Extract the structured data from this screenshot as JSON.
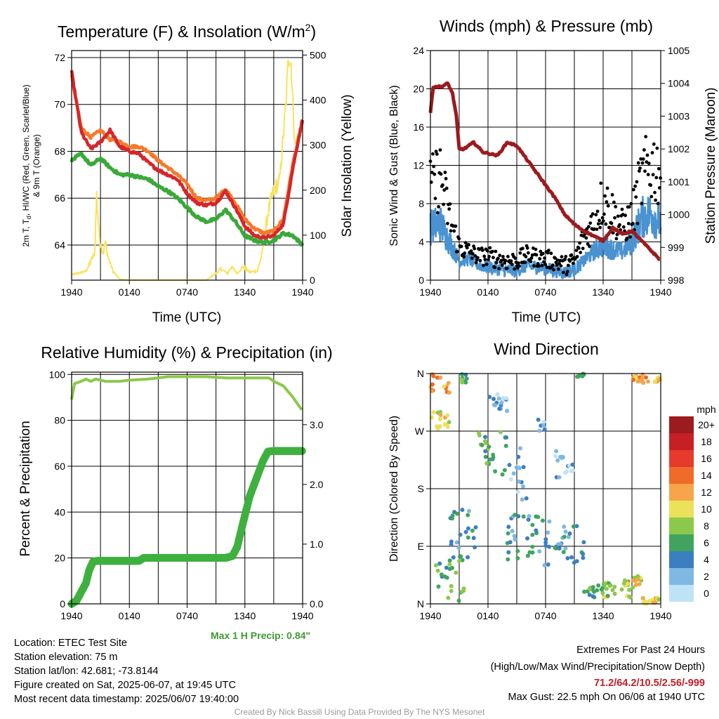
{
  "colors": {
    "temp_2m": "#d6262b",
    "dewpoint": "#3aa93a",
    "chill": "#b01f2a",
    "temp_9m": "#f47a2a",
    "insolation": "#fbe25c",
    "wind": "#4a92d0",
    "gust": "#000000",
    "pressure": "#9b1b1e",
    "rh": "#8cc84b",
    "precip": "#3fb03f",
    "accent_text": "#c21f2a",
    "precip_text": "#3b9c2f"
  },
  "x_tick_labels": [
    "1940",
    "0140",
    "0740",
    "1340",
    "1940"
  ],
  "chart_data": [
    {
      "type": "line",
      "title_main": "Temperature (F) & Insolation (W/m",
      "title_sup": "2",
      "title_end": ")",
      "xlabel": "Time (UTC)",
      "ylabel_line1": "2m T, T",
      "ylabel_sub": "d",
      "ylabel_line1_end": ", HI/WC (Red, Green, Scarlet/Blue)",
      "ylabel_line2": "& 9m T (Orange)",
      "ylabel_right": "Solar Insolation (Yellow)",
      "ylim": [
        62.5,
        72.3
      ],
      "y_ticks": [
        "64",
        "66",
        "68",
        "70",
        "72"
      ],
      "ylim_right": [
        0,
        510
      ],
      "y_ticks_right": [
        "0",
        "100",
        "200",
        "300",
        "400",
        "500"
      ],
      "x_hours": [
        0,
        1,
        2,
        3,
        4,
        5,
        6,
        7,
        8,
        9,
        10,
        11,
        12,
        13,
        14,
        15,
        16,
        17,
        18,
        19,
        20,
        21,
        22,
        23,
        24
      ],
      "series": [
        {
          "key": "temp_9m",
          "values": [
            71.2,
            69.0,
            68.6,
            68.9,
            68.5,
            68.4,
            68.2,
            68.2,
            68.0,
            67.6,
            67.3,
            67.0,
            66.6,
            66.0,
            65.9,
            66.0,
            66.4,
            65.8,
            65.1,
            64.7,
            64.5,
            64.6,
            65.1,
            67.5,
            69.3
          ]
        },
        {
          "key": "temp_2m",
          "values": [
            71.4,
            68.8,
            68.1,
            68.4,
            68.9,
            68.2,
            68.0,
            67.9,
            67.5,
            67.2,
            67.0,
            66.8,
            66.2,
            65.8,
            65.7,
            65.8,
            66.3,
            65.6,
            64.8,
            64.4,
            64.3,
            64.4,
            64.9,
            67.3,
            69.4
          ]
        },
        {
          "key": "dewpoint",
          "values": [
            67.6,
            67.9,
            67.4,
            67.7,
            67.3,
            67.0,
            67.0,
            66.9,
            66.8,
            66.5,
            66.3,
            66.0,
            65.6,
            65.2,
            65.0,
            65.1,
            65.5,
            65.0,
            64.4,
            64.2,
            64.1,
            64.2,
            64.5,
            64.4,
            64.0
          ]
        }
      ],
      "insolation": [
        [
          0,
          12
        ],
        [
          1.5,
          20
        ],
        [
          2.4,
          60
        ],
        [
          2.6,
          190
        ],
        [
          2.9,
          90
        ],
        [
          3.3,
          60
        ],
        [
          3.5,
          85
        ],
        [
          3.8,
          50
        ],
        [
          4.3,
          20
        ],
        [
          5,
          2
        ],
        [
          6,
          0
        ],
        [
          8,
          0
        ],
        [
          10,
          0
        ],
        [
          14,
          0
        ],
        [
          14.5,
          8
        ],
        [
          15,
          15
        ],
        [
          15.5,
          25
        ],
        [
          16.2,
          15
        ],
        [
          16.6,
          30
        ],
        [
          17.2,
          15
        ],
        [
          17.8,
          30
        ],
        [
          18.5,
          18
        ],
        [
          19.3,
          20
        ],
        [
          19.8,
          60
        ],
        [
          20.4,
          150
        ],
        [
          21,
          200
        ],
        [
          21.6,
          220
        ],
        [
          22.3,
          400
        ],
        [
          22.5,
          500
        ],
        [
          22.8,
          480
        ],
        [
          23.2,
          300
        ],
        [
          23.6,
          320
        ],
        [
          24,
          360
        ]
      ]
    },
    {
      "type": "line",
      "title": "Winds (mph) & Pressure (mb)",
      "xlabel": "Time (UTC)",
      "ylabel": "Sonic Wind & Gust (Blue, Black)",
      "ylabel_right": "Station Pressure (Maroon)",
      "ylim": [
        0,
        24
      ],
      "y_ticks": [
        "0",
        "4",
        "8",
        "12",
        "16",
        "20",
        "24"
      ],
      "ylim_right": [
        998,
        1005
      ],
      "y_ticks_right": [
        "998",
        "999",
        "1000",
        "1001",
        "1002",
        "1003",
        "1004",
        "1005"
      ],
      "pressure": [
        [
          0,
          1003.1
        ],
        [
          0.3,
          1003.9
        ],
        [
          1.2,
          1003.9
        ],
        [
          1.8,
          1004.0
        ],
        [
          2.3,
          1003.7
        ],
        [
          2.7,
          1003.0
        ],
        [
          3.0,
          1002.0
        ],
        [
          3.5,
          1002.0
        ],
        [
          4.5,
          1002.2
        ],
        [
          5.5,
          1001.9
        ],
        [
          7,
          1001.8
        ],
        [
          8,
          1002.2
        ],
        [
          9,
          1002.1
        ],
        [
          10,
          1001.7
        ],
        [
          11,
          1001.3
        ],
        [
          12,
          1000.9
        ],
        [
          13,
          1000.5
        ],
        [
          14,
          1000.0
        ],
        [
          15,
          999.7
        ],
        [
          16,
          999.5
        ],
        [
          17,
          999.35
        ],
        [
          18,
          999.2
        ],
        [
          19,
          999.6
        ],
        [
          20,
          999.4
        ],
        [
          21,
          999.5
        ],
        [
          22,
          999.2
        ],
        [
          23,
          998.9
        ],
        [
          24,
          998.6
        ]
      ],
      "wind_mean": [
        5.5,
        6.0,
        4.0,
        2.0,
        2.2,
        1.6,
        1.4,
        1.2,
        1.0,
        1.0,
        1.5,
        1.4,
        1.2,
        1.0,
        0.8,
        1.1,
        2.0,
        3.0,
        3.6,
        3.2,
        3.0,
        4.0,
        6.5,
        7.0,
        6.0
      ],
      "gust_mean": [
        9.5,
        11.0,
        6.5,
        3.5,
        3.0,
        2.5,
        2.5,
        2.2,
        2.0,
        2.0,
        2.6,
        2.4,
        2.2,
        2.0,
        1.5,
        2.0,
        4.5,
        6.0,
        8.5,
        7.0,
        5.5,
        6.5,
        10.5,
        12.0,
        11.5
      ]
    },
    {
      "type": "line",
      "title": "Relative Humidity (%) & Precipitation (in)",
      "xlabel": "",
      "ylabel": "Percent & Precipitation",
      "ylim": [
        0,
        101
      ],
      "y_ticks": [
        "0",
        "20",
        "40",
        "60",
        "80",
        "100"
      ],
      "ylim_right": [
        0,
        3.88
      ],
      "y_ticks_right": [
        "0.0",
        "1.0",
        "2.0",
        "3.0"
      ],
      "rh": [
        [
          0,
          89
        ],
        [
          0.3,
          96
        ],
        [
          1,
          97
        ],
        [
          1.5,
          98
        ],
        [
          2,
          97
        ],
        [
          2.5,
          98
        ],
        [
          3.5,
          97
        ],
        [
          5,
          97
        ],
        [
          6,
          97.5
        ],
        [
          8,
          98
        ],
        [
          10,
          99
        ],
        [
          14,
          99
        ],
        [
          16,
          98.5
        ],
        [
          19,
          98.5
        ],
        [
          20.5,
          98.5
        ],
        [
          21,
          97
        ],
        [
          22,
          95
        ],
        [
          23,
          90
        ],
        [
          24,
          84
        ]
      ],
      "precip": [
        [
          0,
          0.0
        ],
        [
          0.5,
          0.05
        ],
        [
          1,
          0.2
        ],
        [
          1.5,
          0.35
        ],
        [
          1.8,
          0.55
        ],
        [
          2.2,
          0.7
        ],
        [
          2.6,
          0.72
        ],
        [
          4,
          0.72
        ],
        [
          7,
          0.72
        ],
        [
          7.5,
          0.77
        ],
        [
          10,
          0.77
        ],
        [
          14,
          0.77
        ],
        [
          16,
          0.77
        ],
        [
          16.7,
          0.8
        ],
        [
          17.2,
          0.95
        ],
        [
          17.8,
          1.35
        ],
        [
          18.5,
          1.8
        ],
        [
          19.2,
          2.1
        ],
        [
          19.9,
          2.4
        ],
        [
          20.4,
          2.55
        ],
        [
          21,
          2.56
        ],
        [
          24,
          2.56
        ]
      ]
    },
    {
      "type": "scatter",
      "title": "Wind Direction",
      "ylabel": "Direction (Colored By Speed)",
      "y_ticks": [
        "N",
        "E",
        "S",
        "W",
        "N"
      ],
      "legend_title": "mph",
      "legend_labels": [
        "20+",
        "18",
        "16",
        "14",
        "12",
        "10",
        "8",
        "6",
        "4",
        "2",
        "0"
      ],
      "legend_colors": [
        "#9b1b1e",
        "#c71f26",
        "#e63a2c",
        "#f06a2a",
        "#f7a44b",
        "#ece15a",
        "#8cc84b",
        "#41a45e",
        "#3c7fc0",
        "#7fb8e3",
        "#bfe3f6"
      ]
    }
  ],
  "info": {
    "location": "Location: ETEC Test Site",
    "elevation": "Station elevation: 75 m",
    "latlon": "Station lat/lon: 42.681; -73.8144",
    "created": "Figure created on Sat, 2025-06-07, at 19:45 UTC",
    "recent": "Most recent data timestamp: 2025/06/07 19:40:00"
  },
  "extremes": {
    "title": "Extremes For Past 24 Hours",
    "subtitle": "(High/Low/Max Wind/Precipitation/Snow Depth)",
    "values": "71.2/64.2/10.5/2.56/-999",
    "max_gust": "Max Gust: 22.5 mph On 06/06 at 1940 UTC"
  },
  "max_precip": "Max 1 H Precip: 0.84\"",
  "credit": "Created By Nick Bassill Using Data Provided By The NYS Mesonet"
}
